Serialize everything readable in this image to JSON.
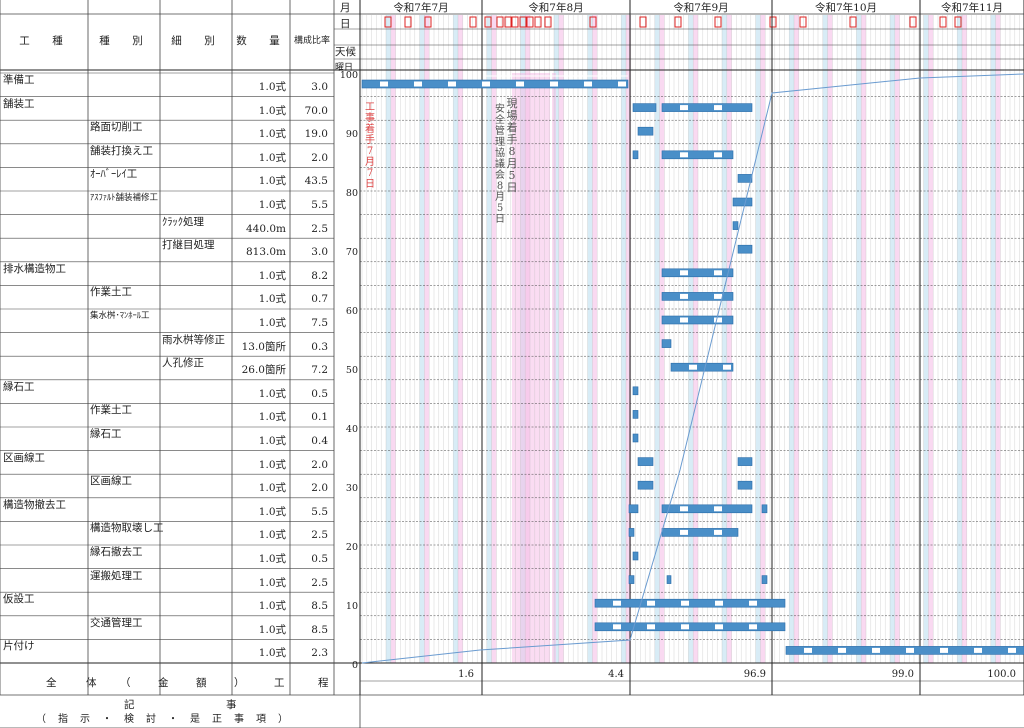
{
  "table": {
    "headers": {
      "koushu": "工　種",
      "shubetsu": "種　別",
      "saibetsu": "細　別",
      "suryo": "数　量",
      "ratio": "構成比率"
    },
    "rows": [
      {
        "koushu": "準備工",
        "shubetsu": "",
        "saibetsu": "",
        "qty": "1.0式",
        "ratio": "3.0"
      },
      {
        "koushu": "舗装工",
        "shubetsu": "",
        "saibetsu": "",
        "qty": "1.0式",
        "ratio": "70.0"
      },
      {
        "koushu": "",
        "shubetsu": "路面切削工",
        "saibetsu": "",
        "qty": "1.0式",
        "ratio": "19.0"
      },
      {
        "koushu": "",
        "shubetsu": "舗装打換え工",
        "saibetsu": "",
        "qty": "1.0式",
        "ratio": "2.0"
      },
      {
        "koushu": "",
        "shubetsu": "ｵｰﾊﾞｰﾚｲ工",
        "saibetsu": "",
        "qty": "1.0式",
        "ratio": "43.5"
      },
      {
        "koushu": "",
        "shubetsu": "ｱｽﾌｧﾙﾄ舗装補修工",
        "saibetsu": "",
        "qty": "1.0式",
        "ratio": "5.5"
      },
      {
        "koushu": "",
        "shubetsu": "",
        "saibetsu": "ｸﾗｯｸ処理",
        "qty": "440.0m",
        "ratio": "2.5"
      },
      {
        "koushu": "",
        "shubetsu": "",
        "saibetsu": "打継目処理",
        "qty": "813.0m",
        "ratio": "3.0"
      },
      {
        "koushu": "排水構造物工",
        "shubetsu": "",
        "saibetsu": "",
        "qty": "1.0式",
        "ratio": "8.2"
      },
      {
        "koushu": "",
        "shubetsu": "作業土工",
        "saibetsu": "",
        "qty": "1.0式",
        "ratio": "0.7"
      },
      {
        "koushu": "",
        "shubetsu": "集水桝･ﾏﾝﾎｰﾙ工",
        "saibetsu": "",
        "qty": "1.0式",
        "ratio": "7.5"
      },
      {
        "koushu": "",
        "shubetsu": "",
        "saibetsu": "雨水桝等修正",
        "qty": "13.0箇所",
        "ratio": "0.3"
      },
      {
        "koushu": "",
        "shubetsu": "",
        "saibetsu": "人孔修正",
        "qty": "26.0箇所",
        "ratio": "7.2"
      },
      {
        "koushu": "縁石工",
        "shubetsu": "",
        "saibetsu": "",
        "qty": "1.0式",
        "ratio": "0.5"
      },
      {
        "koushu": "",
        "shubetsu": "作業土工",
        "saibetsu": "",
        "qty": "1.0式",
        "ratio": "0.1"
      },
      {
        "koushu": "",
        "shubetsu": "縁石工",
        "saibetsu": "",
        "qty": "1.0式",
        "ratio": "0.4"
      },
      {
        "koushu": "区画線工",
        "shubetsu": "",
        "saibetsu": "",
        "qty": "1.0式",
        "ratio": "2.0"
      },
      {
        "koushu": "",
        "shubetsu": "区画線工",
        "saibetsu": "",
        "qty": "1.0式",
        "ratio": "2.0"
      },
      {
        "koushu": "構造物撤去工",
        "shubetsu": "",
        "saibetsu": "",
        "qty": "1.0式",
        "ratio": "5.5"
      },
      {
        "koushu": "",
        "shubetsu": "構造物取壊し工",
        "saibetsu": "",
        "qty": "1.0式",
        "ratio": "2.5"
      },
      {
        "koushu": "",
        "shubetsu": "縁石撤去工",
        "saibetsu": "",
        "qty": "1.0式",
        "ratio": "0.5"
      },
      {
        "koushu": "",
        "shubetsu": "運搬処理工",
        "saibetsu": "",
        "qty": "1.0式",
        "ratio": "2.5"
      },
      {
        "koushu": "仮設工",
        "shubetsu": "",
        "saibetsu": "",
        "qty": "1.0式",
        "ratio": "8.5"
      },
      {
        "koushu": "",
        "shubetsu": "交通管理工",
        "saibetsu": "",
        "qty": "1.0式",
        "ratio": "8.5"
      },
      {
        "koushu": "片付け",
        "shubetsu": "",
        "saibetsu": "",
        "qty": "1.0式",
        "ratio": "2.3"
      }
    ],
    "footer": {
      "zentai": [
        "全",
        "体",
        "（",
        "金",
        "額",
        "）",
        "工",
        "程"
      ],
      "kiji": [
        "記",
        "事"
      ],
      "shiji": "（　指　示　・　検　討　・　是　正　事　項　）"
    }
  },
  "calendar": {
    "row_labels": {
      "month": "月",
      "day": "日",
      "weather": "天候",
      "weekday": "曜日",
      "day_alt": "日"
    },
    "months": [
      "令和7年7月",
      "令和7年8月",
      "令和7年9月",
      "令和7年10月",
      "令和7年11月"
    ],
    "annotations": {
      "start": "工事着手7月7日",
      "site_start": "現場着手8月5日",
      "safety": "安全管理協議会8月5日"
    }
  },
  "progress": {
    "y_ticks": [
      "100",
      "90",
      "80",
      "70",
      "60",
      "50",
      "40",
      "30",
      "20",
      "10",
      "0"
    ],
    "cumulative": [
      "1.6",
      "4.4",
      "96.9",
      "99.0",
      "100.0"
    ]
  },
  "colors": {
    "bar": "#4a8fc8",
    "sunday": "#f5bfe8",
    "saturday": "#b8dcef",
    "line": "#6a9bd0"
  }
}
